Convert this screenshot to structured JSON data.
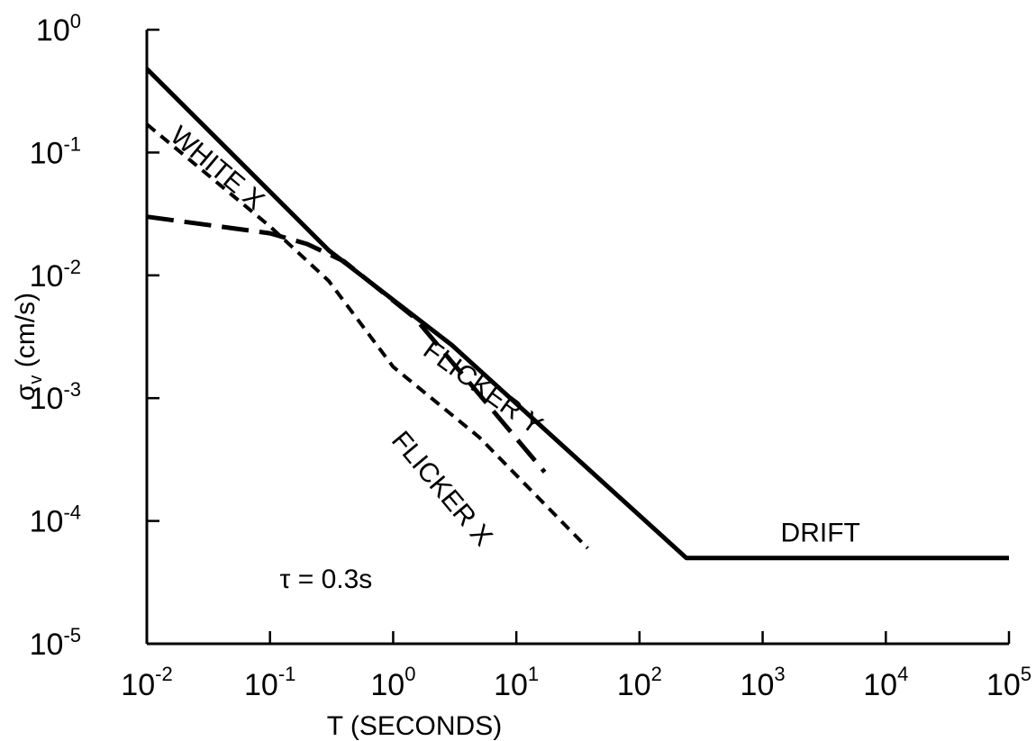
{
  "chart_data": {
    "type": "line",
    "title": "",
    "xlabel": "T (SECONDS)",
    "ylabel_main": "σ",
    "ylabel_sub": "v",
    "ylabel_rest": " (cm/s)",
    "xscale": "log",
    "yscale": "log",
    "xlim": [
      0.01,
      100000
    ],
    "ylim": [
      1e-05,
      1
    ],
    "grid": false,
    "x_ticks": [
      {
        "base": "10",
        "exp": "-2",
        "value": 0.01
      },
      {
        "base": "10",
        "exp": "-1",
        "value": 0.1
      },
      {
        "base": "10",
        "exp": "0",
        "value": 1
      },
      {
        "base": "10",
        "exp": "1",
        "value": 10
      },
      {
        "base": "10",
        "exp": "2",
        "value": 100
      },
      {
        "base": "10",
        "exp": "3",
        "value": 1000
      },
      {
        "base": "10",
        "exp": "4",
        "value": 10000
      },
      {
        "base": "10",
        "exp": "5",
        "value": 100000
      }
    ],
    "y_ticks": [
      {
        "base": "10",
        "exp": "0",
        "value": 1
      },
      {
        "base": "10",
        "exp": "-1",
        "value": 0.1
      },
      {
        "base": "10",
        "exp": "-2",
        "value": 0.01
      },
      {
        "base": "10",
        "exp": "-3",
        "value": 0.001
      },
      {
        "base": "10",
        "exp": "-4",
        "value": 0.0001
      },
      {
        "base": "10",
        "exp": "-5",
        "value": 1e-05
      }
    ],
    "series": [
      {
        "id": "total",
        "style": "solid",
        "x": [
          0.01,
          0.3,
          3,
          240,
          100000
        ],
        "y": [
          0.48,
          0.016,
          0.0027,
          5e-05,
          5e-05
        ]
      },
      {
        "id": "flicker-x",
        "style": "short-dash",
        "x": [
          0.01,
          0.1,
          0.3,
          1,
          5,
          38
        ],
        "y": [
          0.17,
          0.025,
          0.009,
          0.0018,
          0.00048,
          6e-05
        ]
      },
      {
        "id": "flicker-y",
        "style": "long-dash",
        "x": [
          0.01,
          0.1,
          0.2,
          0.4,
          1.5,
          17
        ],
        "y": [
          0.03,
          0.022,
          0.018,
          0.013,
          0.0045,
          0.00025
        ]
      }
    ],
    "annotations": [
      {
        "text": "WHITE X",
        "x": 0.015,
        "y": 0.13,
        "angle": 40
      },
      {
        "text": "FLICKER Y",
        "x": 1.7,
        "y": 0.0023,
        "angle": 36
      },
      {
        "text": "FLICKER X",
        "x": 0.95,
        "y": 0.00045,
        "angle": 50
      },
      {
        "text": "DRIFT",
        "x": 1400,
        "y": 6.8e-05,
        "angle": 0
      },
      {
        "text": "τ = 0.3s",
        "x": 0.12,
        "y": 2.85e-05,
        "angle": 0
      }
    ]
  }
}
